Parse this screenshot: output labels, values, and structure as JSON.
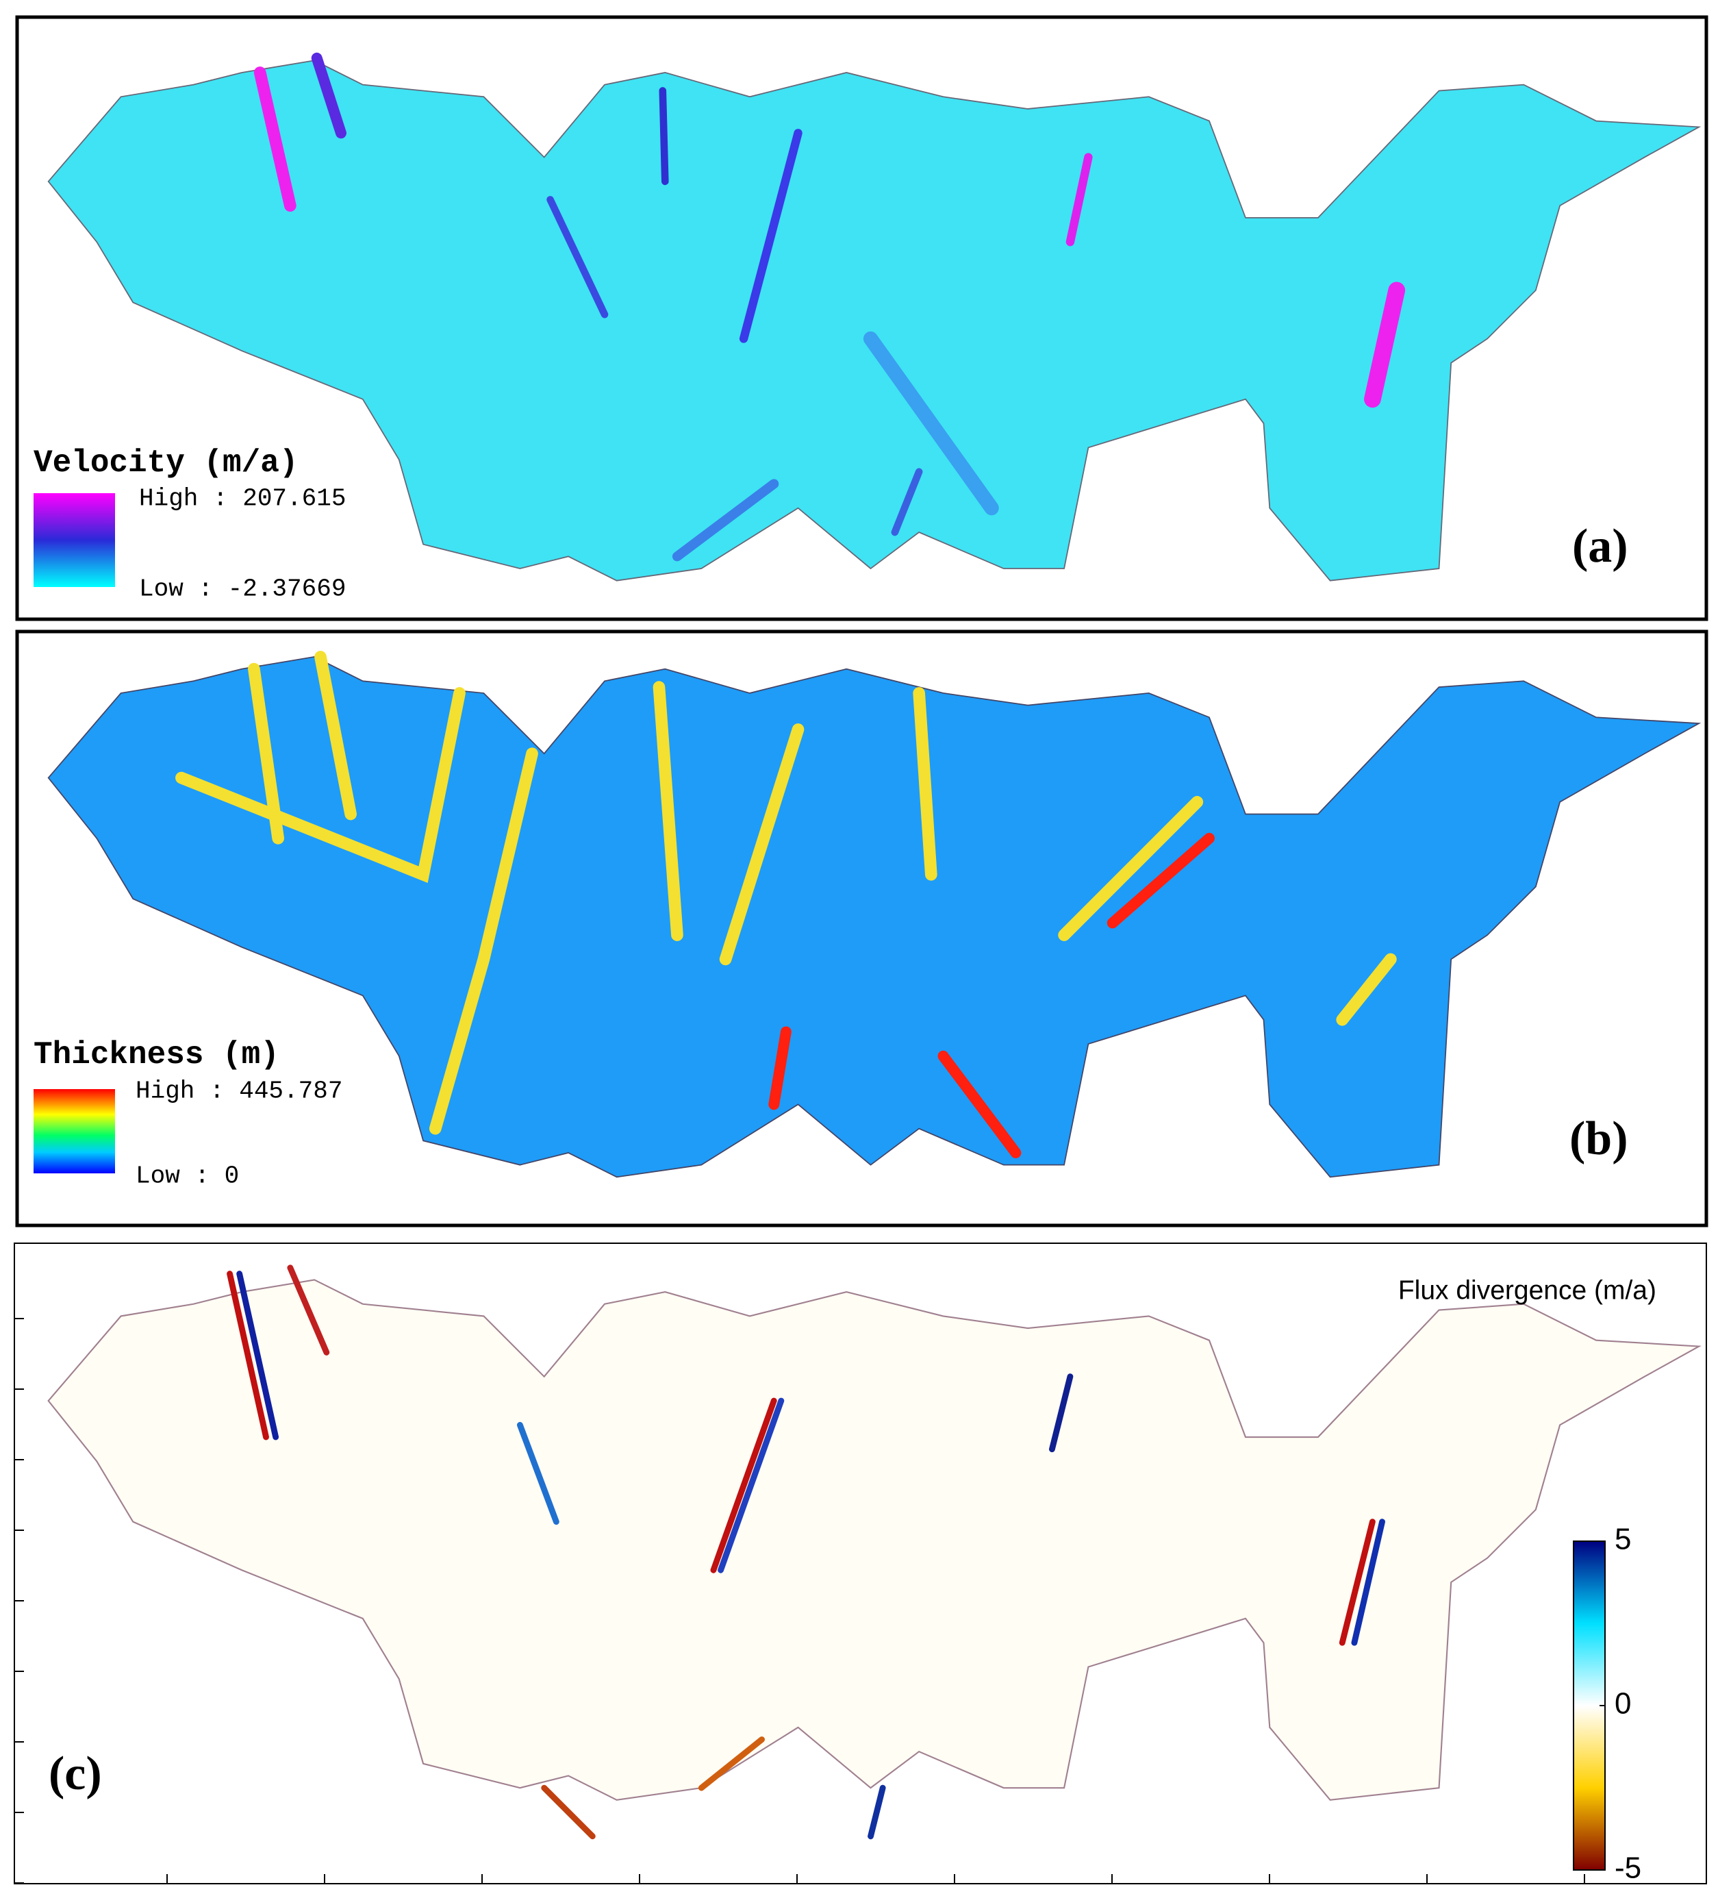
{
  "panels": [
    {
      "label": "(a)",
      "legend": {
        "title": "Velocity (m/a)",
        "high": "High : 207.615",
        "low": "Low : -2.37669"
      }
    },
    {
      "label": "(b)",
      "legend": {
        "title": "Thickness (m)",
        "high": "High : 445.787",
        "low": "Low : 0"
      }
    },
    {
      "label": "(c)",
      "colorbar": {
        "title": "Flux divergence (m/a)",
        "lim": [
          -5,
          5
        ],
        "ticks": [
          5,
          0,
          -5
        ]
      }
    }
  ]
}
